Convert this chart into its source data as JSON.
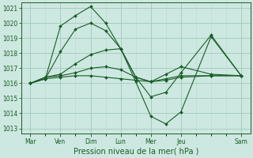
{
  "background_color": "#cde8e0",
  "grid_color_major": "#a0c8bc",
  "grid_color_minor": "#b8d8d0",
  "line_color": "#1a5c28",
  "xlabel": "Pression niveau de la mer( hPa )",
  "xlabel_fontsize": 7.0,
  "ytick_min": 1013,
  "ytick_max": 1021,
  "x_major_positions": [
    0,
    1,
    2,
    3,
    4,
    5,
    7
  ],
  "x_major_labels": [
    "Mar",
    "Ven",
    "Dim",
    "Lun",
    "Mer",
    "Jeu",
    "Sam"
  ],
  "x_data": [
    0,
    0.5,
    1,
    1.5,
    2,
    2.5,
    3,
    3.5,
    4,
    4.5,
    5,
    6,
    7
  ],
  "lines": [
    [
      1016.0,
      1016.3,
      1019.8,
      1020.5,
      1021.1,
      1020.0,
      1018.3,
      1016.1,
      1013.8,
      1013.3,
      1014.1,
      1019.1,
      1016.5
    ],
    [
      1016.0,
      1016.3,
      1018.1,
      1019.6,
      1020.0,
      1019.5,
      1018.3,
      1016.4,
      1015.1,
      1015.4,
      1016.7,
      1019.2,
      1016.5
    ],
    [
      1016.0,
      1016.4,
      1016.6,
      1017.3,
      1017.9,
      1018.2,
      1018.3,
      1016.4,
      1016.1,
      1016.6,
      1017.1,
      1016.6,
      1016.5
    ],
    [
      1016.0,
      1016.4,
      1016.5,
      1016.7,
      1017.0,
      1017.1,
      1016.9,
      1016.4,
      1016.1,
      1016.3,
      1016.5,
      1016.5,
      1016.5
    ],
    [
      1016.0,
      1016.3,
      1016.4,
      1016.5,
      1016.5,
      1016.4,
      1016.3,
      1016.2,
      1016.1,
      1016.2,
      1016.4,
      1016.5,
      1016.5
    ]
  ]
}
